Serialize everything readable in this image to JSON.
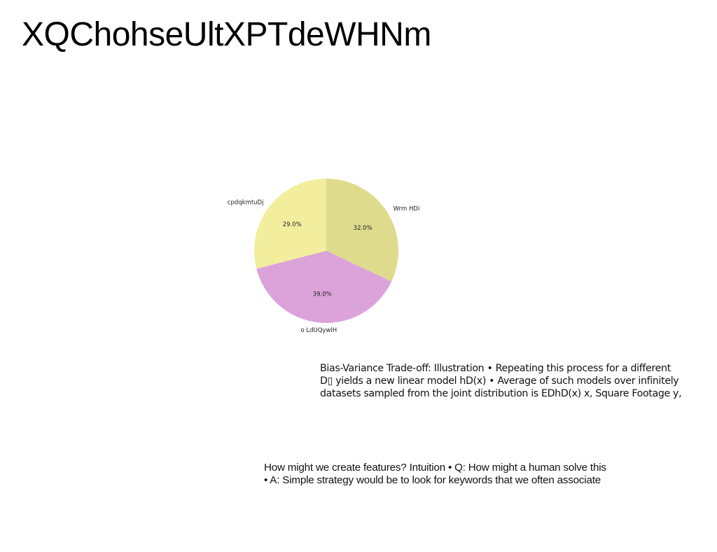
{
  "page": {
    "title": "XQChohseUltXPTdeWHNm"
  },
  "chart_data": {
    "type": "pie",
    "title": "",
    "slices": [
      {
        "label": "Wrm HDi",
        "value": 32.0,
        "pct_label": "32.0%",
        "color": "#dfdb8d"
      },
      {
        "label": "o LdUQywlH",
        "value": 39.0,
        "pct_label": "39.0%",
        "color": "#dba3da"
      },
      {
        "label": "cpdqkmtuDj",
        "value": 29.0,
        "pct_label": "29.0%",
        "color": "#f2ee9e"
      }
    ],
    "start_angle_deg": 90,
    "direction": "clockwise"
  },
  "text_blocks": {
    "para1_lines": [
      "Bias-Variance Trade-off: Illustration • Repeating this process for a different",
      "D▯ yields a new linear model hD(x) • Average of such models over infinitely",
      "datasets sampled from the joint distribution is EDhD(x) x, Square Footage y,"
    ],
    "para2_lines": [
      "How might we create features? Intuition • Q: How might a human solve this",
      "• A: Simple strategy would be to look for keywords that we often associate"
    ]
  }
}
